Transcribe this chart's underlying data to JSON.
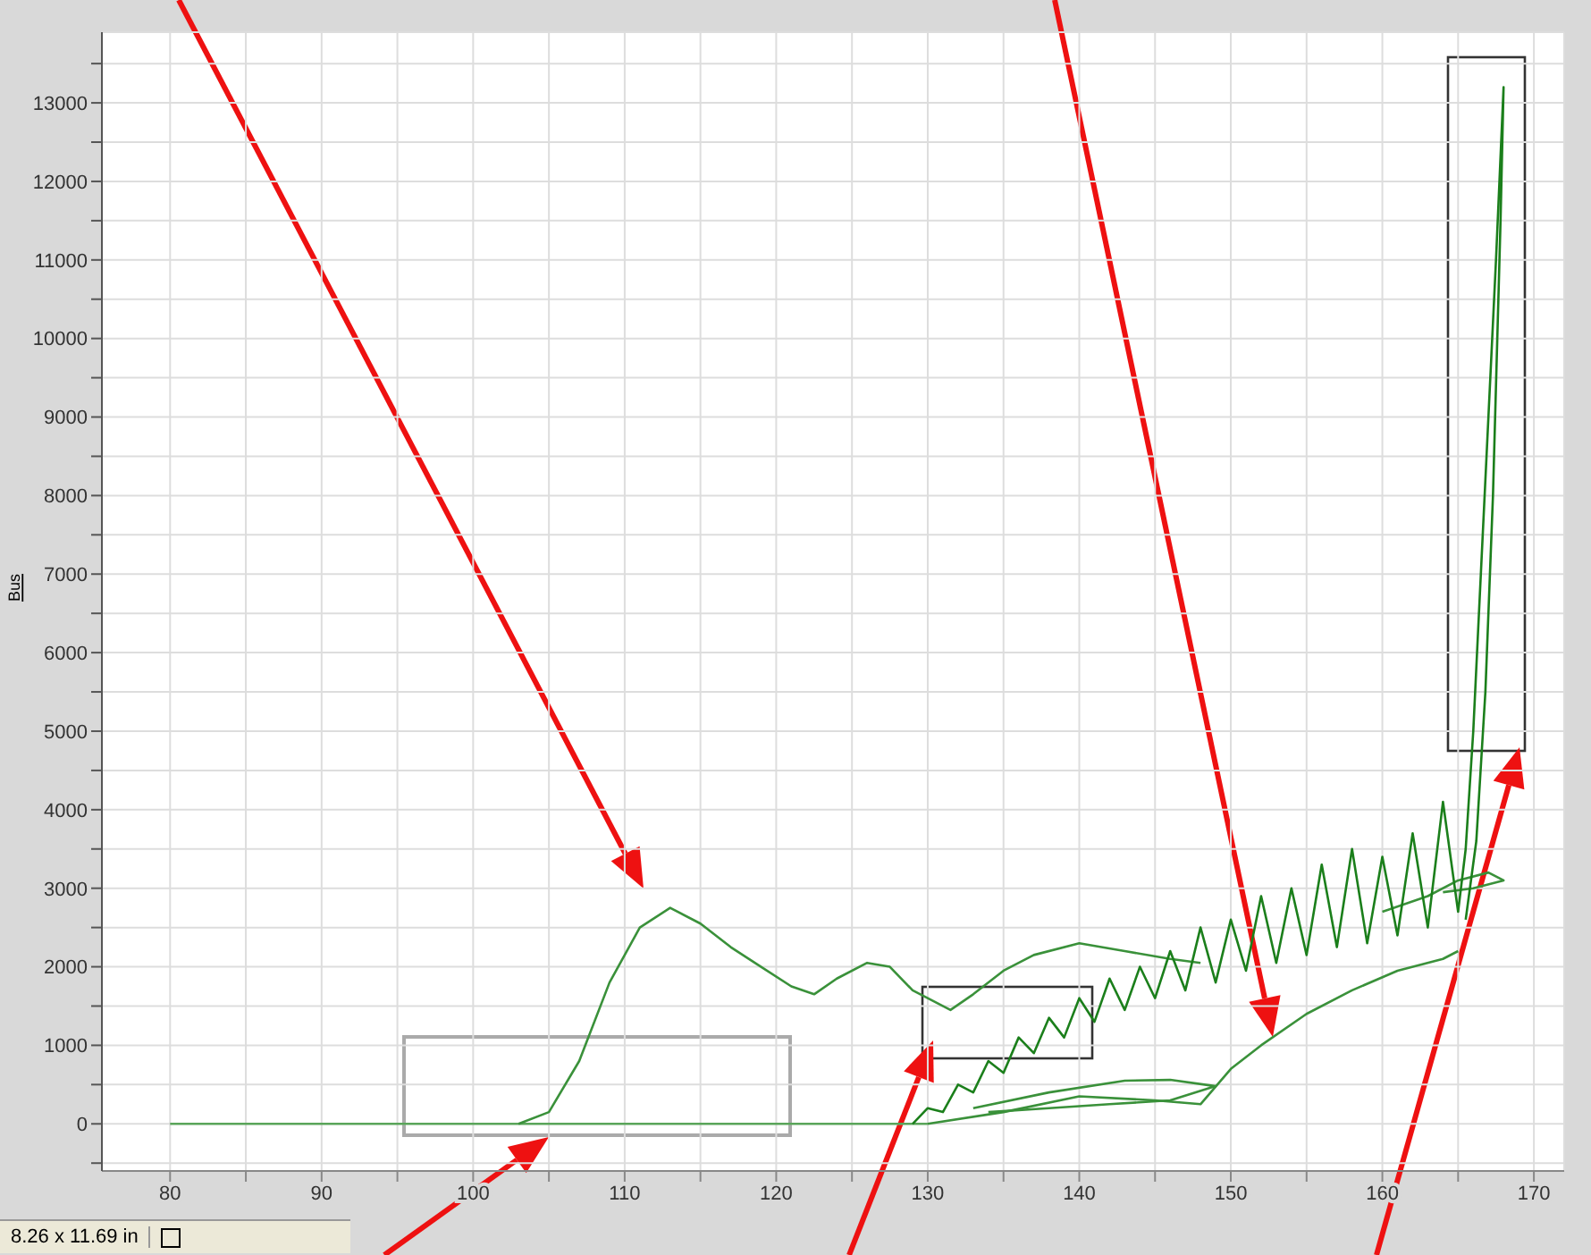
{
  "chart_data": {
    "type": "line",
    "ylabel": "Bus",
    "xlim": [
      75.5,
      172
    ],
    "ylim": [
      -600,
      13900
    ],
    "xticks": [
      80,
      {
        "value": 85,
        "label": null
      },
      90,
      {
        "value": 95,
        "label": null
      },
      100,
      {
        "value": 105,
        "label": null
      },
      110,
      {
        "value": 115,
        "label": null
      },
      120,
      {
        "value": 125,
        "label": null
      },
      130,
      {
        "value": 135,
        "label": null
      },
      140,
      {
        "value": 145,
        "label": null
      },
      150,
      {
        "value": 155,
        "label": null
      },
      160,
      {
        "value": 165,
        "label": null
      },
      170
    ],
    "yticks": [
      {
        "value": -500,
        "label": null
      },
      0,
      {
        "value": 500,
        "label": null
      },
      1000,
      {
        "value": 1500,
        "label": null
      },
      2000,
      {
        "value": 2500,
        "label": null
      },
      3000,
      {
        "value": 3500,
        "label": null
      },
      4000,
      {
        "value": 4500,
        "label": null
      },
      5000,
      {
        "value": 5500,
        "label": null
      },
      6000,
      {
        "value": 6500,
        "label": null
      },
      7000,
      {
        "value": 7500,
        "label": null
      },
      8000,
      {
        "value": 8500,
        "label": null
      },
      9000,
      {
        "value": 9500,
        "label": null
      },
      10000,
      {
        "value": 10500,
        "label": null
      },
      11000,
      {
        "value": 11500,
        "label": null
      },
      12000,
      {
        "value": 12500,
        "label": null
      },
      13000,
      {
        "value": 13500,
        "label": null
      }
    ],
    "grid": true,
    "marker": "none",
    "line_style": "solid",
    "annotations": [
      "8.26 x 11.69 in"
    ],
    "series": [
      {
        "color": "#5aa55a",
        "x": [
          80,
          130
        ],
        "values": [
          0,
          0
        ]
      },
      {
        "color": "#3a913a",
        "x": [
          103,
          105,
          107,
          109,
          111,
          113,
          115,
          117,
          119,
          121,
          122.5,
          124,
          126,
          127.5,
          129,
          131.5,
          133,
          135,
          137,
          140,
          143,
          146,
          148
        ],
        "values": [
          0,
          150,
          800,
          1800,
          2500,
          2750,
          2550,
          2250,
          2000,
          1750,
          1650,
          1850,
          2050,
          2000,
          1700,
          1450,
          1650,
          1950,
          2150,
          2300,
          2200,
          2100,
          2050
        ]
      },
      {
        "color": "#3a913a",
        "x": [
          130,
          135,
          140,
          145,
          148,
          150,
          152,
          155,
          158,
          161,
          164,
          165
        ],
        "values": [
          0,
          150,
          350,
          300,
          250,
          700,
          1000,
          1400,
          1700,
          1950,
          2100,
          2200
        ]
      },
      {
        "color": "#3a913a",
        "x": [
          133,
          138,
          143,
          146,
          149,
          146,
          142,
          138,
          134
        ],
        "values": [
          200,
          400,
          550,
          560,
          480,
          300,
          250,
          200,
          150
        ]
      },
      {
        "color": "#3a913a",
        "x": [
          160,
          163,
          165,
          167,
          168,
          166,
          164
        ],
        "values": [
          2700,
          2900,
          3100,
          3200,
          3100,
          3000,
          2950
        ]
      },
      {
        "color": "#1b7f1b",
        "x": [
          129,
          130,
          131,
          132,
          133,
          134,
          135,
          136,
          137,
          138,
          139,
          140,
          141,
          142,
          143,
          144,
          145,
          146,
          147,
          148,
          149,
          150,
          151,
          152,
          153,
          154,
          155,
          156,
          157,
          158,
          159,
          160,
          161,
          162,
          163,
          164,
          165,
          165.5,
          166,
          166.5,
          167,
          167.5,
          168,
          167.8,
          167.3,
          166.8,
          166.2,
          165.5
        ],
        "values": [
          0,
          200,
          150,
          500,
          400,
          800,
          650,
          1100,
          900,
          1350,
          1100,
          1600,
          1300,
          1850,
          1450,
          2000,
          1600,
          2200,
          1700,
          2500,
          1800,
          2600,
          1950,
          2900,
          2050,
          3000,
          2150,
          3300,
          2250,
          3500,
          2300,
          3400,
          2400,
          3700,
          2500,
          4100,
          2700,
          3500,
          5000,
          7000,
          9000,
          11000,
          13200,
          11500,
          8000,
          5500,
          3600,
          2600
        ]
      }
    ]
  }
}
